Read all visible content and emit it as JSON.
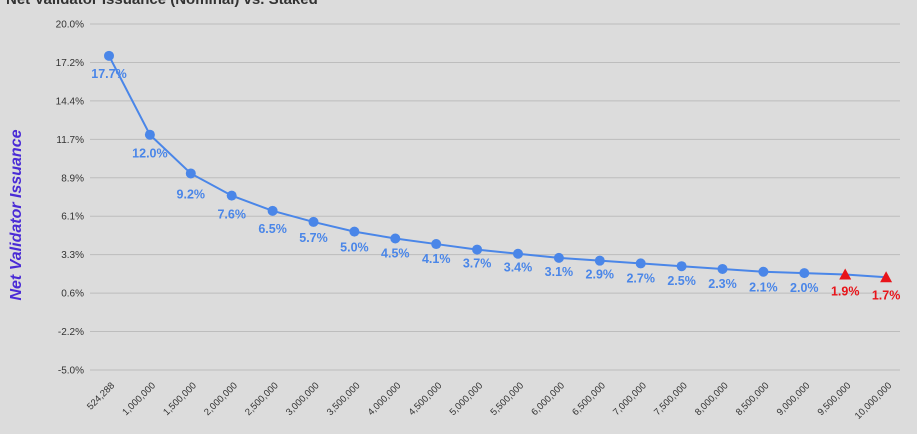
{
  "chart_data": {
    "type": "line",
    "title": "Net Validator Issuance (Nominal) vs. Staked",
    "ylabel": "Net Validator Issuance",
    "xlabel": "",
    "ylim": [
      -5.0,
      20.0
    ],
    "y_ticks": [
      "20.0%",
      "17.2%",
      "14.4%",
      "11.7%",
      "8.9%",
      "6.1%",
      "3.3%",
      "0.6%",
      "-2.2%",
      "-5.0%"
    ],
    "categories": [
      "524,288",
      "1,000,000",
      "1,500,000",
      "2,000,000",
      "2,500,000",
      "3,000,000",
      "3,500,000",
      "4,000,000",
      "4,500,000",
      "5,000,000",
      "5,500,000",
      "6,000,000",
      "6,500,000",
      "7,000,000",
      "7,500,000",
      "8,000,000",
      "8,500,000",
      "9,000,000",
      "9,500,000",
      "10,000,000"
    ],
    "values": [
      17.7,
      12.0,
      9.2,
      7.6,
      6.5,
      5.7,
      5.0,
      4.5,
      4.1,
      3.7,
      3.4,
      3.1,
      2.9,
      2.7,
      2.5,
      2.3,
      2.1,
      2.0,
      1.9,
      1.7
    ],
    "labels": [
      "17.7%",
      "12.0%",
      "9.2%",
      "7.6%",
      "6.5%",
      "5.7%",
      "5.0%",
      "4.5%",
      "4.1%",
      "3.7%",
      "3.4%",
      "3.1%",
      "2.9%",
      "2.7%",
      "2.5%",
      "2.3%",
      "2.1%",
      "2.0%",
      "1.9%",
      "1.7%"
    ],
    "highlighted_indices": [
      18,
      19
    ],
    "grid": true,
    "legend": "none",
    "colors": {
      "line": "#4a86e8",
      "point": "#4a86e8",
      "highlight": "#e8141a",
      "label": "#4a86e8",
      "highlight_label": "#e8141a",
      "grid": "#bdbdbd",
      "axis_label": "#4a2bd6",
      "background": "#dcdcdc"
    }
  }
}
